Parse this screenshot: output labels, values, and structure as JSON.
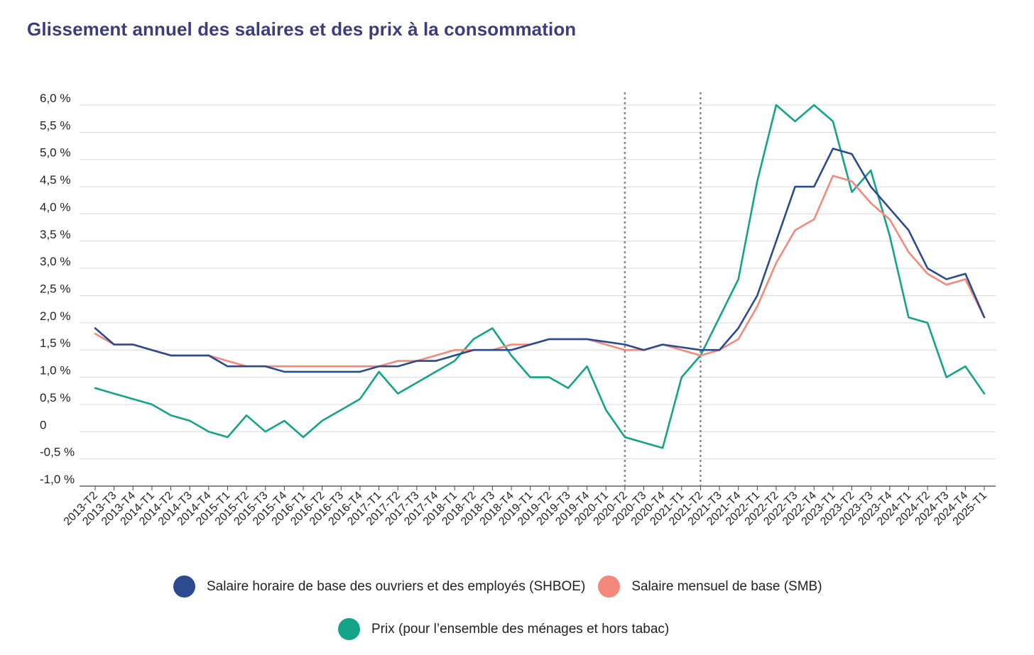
{
  "title": "Glissement annuel des salaires et des prix à la consommation",
  "colors": {
    "grid": "#d9d9d9",
    "axis": "#444444",
    "dotted": "#8a8a8a"
  },
  "chart_data": {
    "type": "line",
    "title": "Glissement annuel des salaires et des prix à la consommation",
    "xlabel": "",
    "ylabel": "",
    "ylim": [
      -1.0,
      6.0
    ],
    "grid": true,
    "legend_position": "bottom",
    "y_ticks": [
      {
        "value": 6.0,
        "label": "6,0 %"
      },
      {
        "value": 5.5,
        "label": "5,5 %"
      },
      {
        "value": 5.0,
        "label": "5,0 %"
      },
      {
        "value": 4.5,
        "label": "4,5 %"
      },
      {
        "value": 4.0,
        "label": "4,0 %"
      },
      {
        "value": 3.5,
        "label": "3,5 %"
      },
      {
        "value": 3.0,
        "label": "3,0 %"
      },
      {
        "value": 2.5,
        "label": "2,5 %"
      },
      {
        "value": 2.0,
        "label": "2,0 %"
      },
      {
        "value": 1.5,
        "label": "1,5 %"
      },
      {
        "value": 1.0,
        "label": "1,0 %"
      },
      {
        "value": 0.5,
        "label": "0,5 %"
      },
      {
        "value": 0.0,
        "label": "0"
      },
      {
        "value": -0.5,
        "label": "-0,5 %"
      },
      {
        "value": -1.0,
        "label": "-1,0 %"
      }
    ],
    "categories": [
      "2013-T2",
      "2013-T3",
      "2013-T4",
      "2014-T1",
      "2014-T2",
      "2014-T3",
      "2014-T4",
      "2015-T1",
      "2015-T2",
      "2015-T3",
      "2015-T4",
      "2016-T1",
      "2016-T2",
      "2016-T3",
      "2016-T4",
      "2017-T1",
      "2017-T2",
      "2017-T3",
      "2017-T4",
      "2018-T1",
      "2018-T2",
      "2018-T3",
      "2018-T4",
      "2019-T1",
      "2019-T2",
      "2019-T3",
      "2019-T4",
      "2020-T1",
      "2020-T2",
      "2020-T3",
      "2020-T4",
      "2021-T1",
      "2021-T2",
      "2021-T3",
      "2021-T4",
      "2022-T1",
      "2022-T2",
      "2022-T3",
      "2022-T4",
      "2023-T1",
      "2023-T2",
      "2023-T3",
      "2023-T4",
      "2024-T1",
      "2024-T2",
      "2024-T3",
      "2024-T4",
      "2025-T1"
    ],
    "vertical_markers": [
      "2020-T2",
      "2021-T2"
    ],
    "series": [
      {
        "name": "Salaire horaire de base des ouvriers et des employés (SHBOE)",
        "color": "#2b4a8f",
        "values": [
          1.9,
          1.6,
          1.6,
          1.5,
          1.4,
          1.4,
          1.4,
          1.2,
          1.2,
          1.2,
          1.1,
          1.1,
          1.1,
          1.1,
          1.1,
          1.2,
          1.2,
          1.3,
          1.3,
          1.4,
          1.5,
          1.5,
          1.5,
          1.6,
          1.7,
          1.7,
          1.7,
          1.65,
          1.6,
          1.5,
          1.6,
          1.55,
          1.5,
          1.5,
          1.9,
          2.5,
          3.5,
          4.5,
          4.5,
          5.2,
          5.1,
          4.5,
          4.1,
          3.7,
          3.0,
          2.8,
          2.9,
          2.1
        ]
      },
      {
        "name": "Salaire mensuel de base (SMB)",
        "color": "#f4887a",
        "values": [
          1.8,
          1.6,
          1.6,
          1.5,
          1.4,
          1.4,
          1.4,
          1.3,
          1.2,
          1.2,
          1.2,
          1.2,
          1.2,
          1.2,
          1.2,
          1.2,
          1.3,
          1.3,
          1.4,
          1.5,
          1.5,
          1.5,
          1.6,
          1.6,
          1.7,
          1.7,
          1.7,
          1.6,
          1.5,
          1.5,
          1.6,
          1.5,
          1.4,
          1.5,
          1.7,
          2.3,
          3.1,
          3.7,
          3.9,
          4.7,
          4.6,
          4.2,
          3.9,
          3.3,
          2.9,
          2.7,
          2.8,
          2.1
        ]
      },
      {
        "name": "Prix (pour l’ensemble des ménages et hors tabac)",
        "color": "#12a388",
        "values": [
          0.8,
          0.7,
          0.6,
          0.5,
          0.3,
          0.2,
          0.0,
          -0.1,
          0.3,
          0.0,
          0.2,
          -0.1,
          0.2,
          0.4,
          0.6,
          1.1,
          0.7,
          0.9,
          1.1,
          1.3,
          1.7,
          1.9,
          1.4,
          1.0,
          1.0,
          0.8,
          1.2,
          0.4,
          -0.1,
          -0.2,
          -0.3,
          1.0,
          1.4,
          2.1,
          2.8,
          4.6,
          6.0,
          5.7,
          6.0,
          5.7,
          4.4,
          4.8,
          3.6,
          2.1,
          2.0,
          1.0,
          1.2,
          0.7
        ]
      }
    ]
  },
  "legend": {
    "row1": [
      {
        "label": "Salaire horaire de base des ouvriers et des employés (SHBOE)",
        "color": "#2b4a8f"
      },
      {
        "label": "Salaire mensuel de base (SMB)",
        "color": "#f4887a"
      }
    ],
    "row2": [
      {
        "label": "Prix (pour l’ensemble des ménages et hors tabac)",
        "color": "#12a388"
      }
    ]
  }
}
